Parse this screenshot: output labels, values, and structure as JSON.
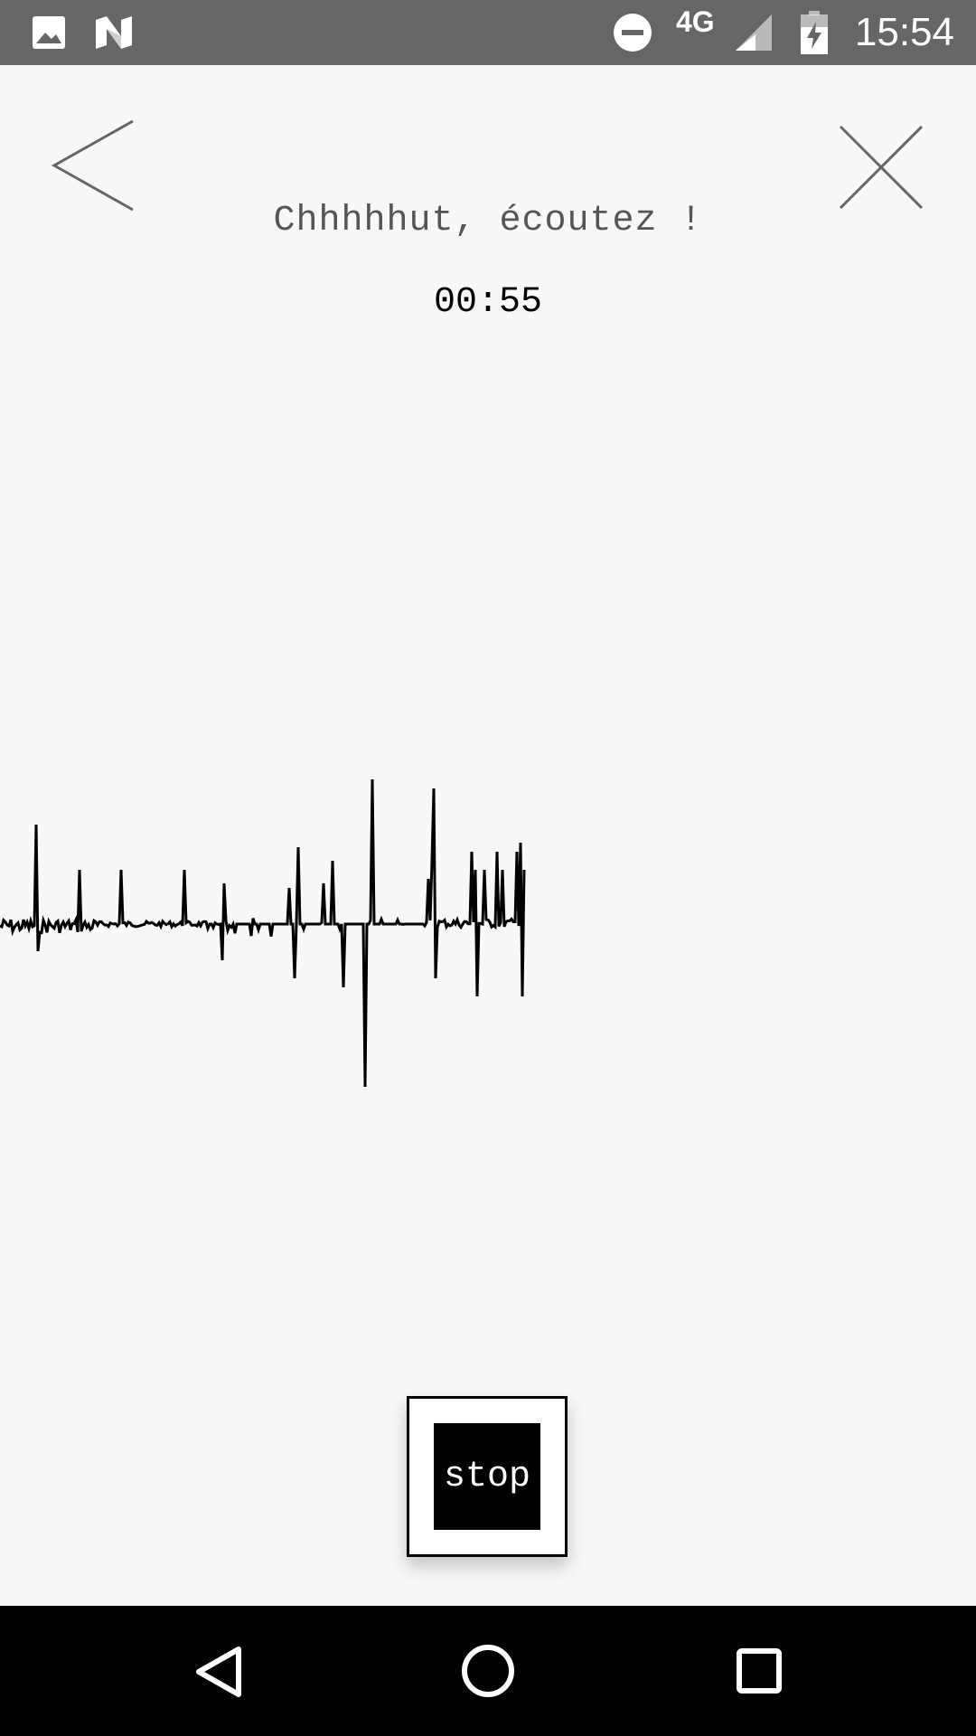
{
  "status_bar": {
    "time": "15:54",
    "network": "4G",
    "icons": [
      "image-icon",
      "n-logo-icon",
      "do-not-disturb-icon",
      "signal-icon",
      "battery-charging-icon"
    ]
  },
  "header": {
    "back_icon": "chevron-left-icon",
    "close_icon": "close-icon",
    "title": "Chhhhhut, écoutez !",
    "timer": "00:55"
  },
  "controls": {
    "stop_label": "stop"
  },
  "nav_bar": {
    "icons": [
      "back-triangle-icon",
      "home-circle-icon",
      "recents-square-icon"
    ]
  },
  "colors": {
    "status_bar": "#666666",
    "background": "#f8f8f8",
    "waveform": "#000000",
    "nav_bar": "#000000"
  }
}
